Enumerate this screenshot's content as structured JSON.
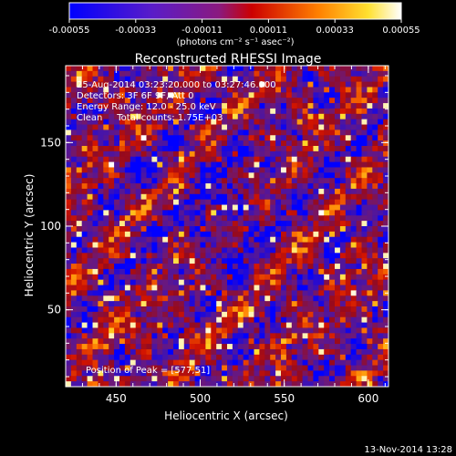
{
  "chart_data": {
    "type": "heatmap",
    "title": "Reconstructed RHESSI Image",
    "xlabel": "Heliocentric X (arcsec)",
    "ylabel": "Heliocentric Y (arcsec)",
    "xlim": [
      420,
      612
    ],
    "ylim": [
      4,
      196
    ],
    "x_ticks": [
      450,
      500,
      550,
      600
    ],
    "y_ticks": [
      50,
      100,
      150
    ],
    "colorbar": {
      "range": [
        -0.00055,
        0.00055
      ],
      "tick_labels": [
        "-0.00055",
        "-0.00033",
        "-0.00011",
        "0.00011",
        "0.00033",
        "0.00055"
      ],
      "unit_label": "(photons cm⁻² s⁻¹ asec⁻²)"
    },
    "annotations": {
      "time_range": "25-Aug-2014 03:23:20.000 to 03:27:46.000",
      "detectors": "Detectors: 3F 6F 9F, Att 0",
      "energy_range": "Energy Range: 12.0 - 25.0 keV",
      "clean_counts": "Clean     Total counts: 1.75E+03",
      "peak_position": "Position of Peak = [577,51]"
    }
  },
  "footer": {
    "timestamp": "13-Nov-2014 13:28"
  }
}
